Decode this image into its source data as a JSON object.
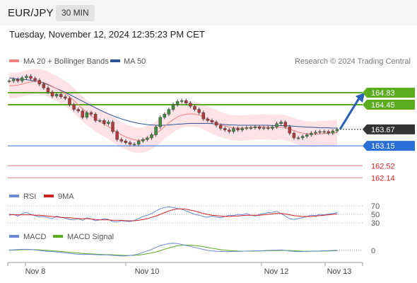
{
  "header": {
    "symbol": "EUR/JPY",
    "interval": "30 MIN",
    "datetime": "Tuesday, November 12, 2024 12:35:23 PM CET"
  },
  "legend": {
    "ma20": {
      "label": "MA 20 + Bollinger Bands",
      "color": "#f08080"
    },
    "ma50": {
      "label": "MA 50",
      "color": "#2a5599"
    },
    "credit": "Research © 2024 Trading Central"
  },
  "chart_data": [
    {
      "type": "line",
      "title": "EUR/JPY 30 MIN price",
      "ylim": [
        161.9,
        165.5
      ],
      "x_ticks": [
        "Nov 8",
        "Nov 10",
        "Nov 12",
        "Nov 13"
      ],
      "levels": [
        {
          "value": 164.83,
          "label": "164.83",
          "color": "#5aab1e",
          "kind": "resistance"
        },
        {
          "value": 164.45,
          "label": "164.45",
          "color": "#5aab1e",
          "kind": "resistance"
        },
        {
          "value": 163.67,
          "label": "163.67",
          "color": "#333333",
          "kind": "last"
        },
        {
          "value": 163.15,
          "label": "163.15",
          "color": "#2a6fd6",
          "kind": "pivot"
        },
        {
          "value": 162.52,
          "label": "162.52",
          "color": "#cc2222",
          "kind": "support"
        },
        {
          "value": 162.14,
          "label": "162.14",
          "color": "#cc2222",
          "kind": "support"
        }
      ],
      "series": [
        {
          "name": "Price",
          "values": [
            165.2,
            165.25,
            165.2,
            165.3,
            165.35,
            165.28,
            165.22,
            165.1,
            164.98,
            164.85,
            164.72,
            164.78,
            164.7,
            164.65,
            164.45,
            164.3,
            164.25,
            164.05,
            164.2,
            164.15,
            163.95,
            163.95,
            163.85,
            163.9,
            163.6,
            163.35,
            163.3,
            163.25,
            163.2,
            163.2,
            163.3,
            163.35,
            163.4,
            163.5,
            163.75,
            164.05,
            164.15,
            164.3,
            164.45,
            164.55,
            164.58,
            164.5,
            164.4,
            164.3,
            164.2,
            164.0,
            163.95,
            163.9,
            163.8,
            163.7,
            163.65,
            163.6,
            163.7,
            163.65,
            163.7,
            163.72,
            163.72,
            163.75,
            163.7,
            163.72,
            163.7,
            163.75,
            163.85,
            163.9,
            163.75,
            163.55,
            163.4,
            163.4,
            163.45,
            163.5,
            163.55,
            163.58,
            163.6,
            163.6,
            163.55,
            163.62,
            163.67
          ]
        },
        {
          "name": "MA 20",
          "values": [
            165.05,
            165.05,
            165.07,
            165.1,
            165.14,
            165.17,
            165.19,
            165.18,
            165.15,
            165.1,
            165.03,
            164.96,
            164.88,
            164.8,
            164.7,
            164.58,
            164.45,
            164.32,
            164.2,
            164.1,
            164.0,
            163.92,
            163.84,
            163.76,
            163.67,
            163.58,
            163.5,
            163.43,
            163.38,
            163.34,
            163.32,
            163.34,
            163.38,
            163.44,
            163.53,
            163.64,
            163.76,
            163.88,
            163.98,
            164.06,
            164.12,
            164.15,
            164.16,
            164.15,
            164.12,
            164.07,
            164.0,
            163.94,
            163.88,
            163.82,
            163.78,
            163.74,
            163.72,
            163.71,
            163.71,
            163.72,
            163.73,
            163.74,
            163.75,
            163.75,
            163.74,
            163.73,
            163.73,
            163.74,
            163.72,
            163.68,
            163.63,
            163.58,
            163.55,
            163.53,
            163.52,
            163.52,
            163.53,
            163.54,
            163.55,
            163.56,
            163.57
          ]
        },
        {
          "name": "MA 50",
          "values": [
            165.3,
            165.28,
            165.26,
            165.25,
            165.24,
            165.22,
            165.2,
            165.17,
            165.13,
            165.08,
            165.02,
            164.96,
            164.9,
            164.84,
            164.77,
            164.7,
            164.63,
            164.56,
            164.49,
            164.42,
            164.35,
            164.28,
            164.22,
            164.16,
            164.1,
            164.05,
            164.0,
            163.96,
            163.92,
            163.89,
            163.86,
            163.84,
            163.82,
            163.81,
            163.8,
            163.8,
            163.8,
            163.81,
            163.82,
            163.83,
            163.84,
            163.85,
            163.86,
            163.86,
            163.86,
            163.86,
            163.86,
            163.85,
            163.84,
            163.83,
            163.82,
            163.81,
            163.81,
            163.8,
            163.8,
            163.8,
            163.8,
            163.8,
            163.8,
            163.8,
            163.8,
            163.79,
            163.79,
            163.79,
            163.79,
            163.78,
            163.77,
            163.76,
            163.75,
            163.74,
            163.74,
            163.73,
            163.72,
            163.72,
            163.72,
            163.71,
            163.71
          ]
        }
      ],
      "bollinger_width": 0.4
    },
    {
      "type": "line",
      "title": "RSI",
      "ylim": [
        25,
        75
      ],
      "y_ticks": [
        70,
        50,
        30
      ],
      "legend": [
        {
          "name": "RSI",
          "color": "#6a88d6"
        },
        {
          "name": "9MA",
          "color": "#cc2222"
        }
      ],
      "series": [
        {
          "name": "RSI",
          "values": [
            48,
            50,
            46,
            52,
            55,
            50,
            47,
            44,
            45,
            42,
            40,
            46,
            43,
            41,
            38,
            37,
            40,
            36,
            42,
            39,
            35,
            37,
            40,
            38,
            33,
            32,
            35,
            34,
            33,
            36,
            40,
            45,
            48,
            52,
            58,
            63,
            66,
            68,
            66,
            64,
            62,
            58,
            54,
            50,
            48,
            45,
            43,
            46,
            44,
            42,
            45,
            48,
            47,
            50,
            49,
            52,
            48,
            46,
            50,
            52,
            54,
            55,
            57,
            52,
            46,
            40,
            38,
            40,
            42,
            45,
            48,
            47,
            50,
            49,
            51,
            52,
            54
          ]
        },
        {
          "name": "9MA",
          "values": [
            50,
            49,
            49,
            49,
            49,
            49,
            48,
            48,
            47,
            46,
            45,
            44,
            43,
            42,
            42,
            41,
            40,
            40,
            40,
            39,
            38,
            37,
            37,
            37,
            36,
            36,
            36,
            35,
            35,
            35,
            36,
            38,
            40,
            43,
            46,
            50,
            54,
            58,
            61,
            63,
            63,
            62,
            60,
            58,
            55,
            52,
            50,
            48,
            47,
            46,
            45,
            45,
            46,
            46,
            47,
            48,
            48,
            48,
            48,
            49,
            50,
            51,
            52,
            52,
            51,
            49,
            47,
            46,
            45,
            45,
            45,
            46,
            47,
            48,
            49,
            50,
            51
          ]
        }
      ]
    },
    {
      "type": "line",
      "title": "MACD",
      "ylim": [
        -1,
        1
      ],
      "y_ticks": [
        0
      ],
      "legend": [
        {
          "name": "MACD",
          "color": "#6a88d6"
        },
        {
          "name": "MACD Signal",
          "color": "#5aab1e"
        }
      ],
      "series": [
        {
          "name": "MACD",
          "values": [
            0.05,
            0.05,
            0.1,
            0.12,
            0.12,
            0.1,
            0.05,
            0,
            -0.05,
            -0.1,
            -0.12,
            -0.15,
            -0.2,
            -0.25,
            -0.3,
            -0.35,
            -0.38,
            -0.4,
            -0.4,
            -0.4,
            -0.42,
            -0.45,
            -0.45,
            -0.45,
            -0.5,
            -0.52,
            -0.55,
            -0.55,
            -0.5,
            -0.45,
            -0.35,
            -0.2,
            -0.05,
            0.1,
            0.3,
            0.5,
            0.6,
            0.7,
            0.72,
            0.7,
            0.6,
            0.5,
            0.4,
            0.3,
            0.2,
            0.1,
            0,
            -0.05,
            -0.08,
            -0.1,
            -0.12,
            -0.12,
            -0.1,
            -0.1,
            -0.08,
            -0.06,
            -0.05,
            -0.04,
            -0.03,
            -0.02,
            0,
            0.02,
            0.04,
            0.05,
            0.02,
            -0.05,
            -0.1,
            -0.12,
            -0.12,
            -0.1,
            -0.08,
            -0.06,
            -0.05,
            -0.03,
            -0.02,
            0,
            0.01
          ]
        },
        {
          "name": "MACD Signal",
          "values": [
            0.02,
            0.03,
            0.05,
            0.07,
            0.08,
            0.09,
            0.08,
            0.06,
            0.03,
            0,
            -0.03,
            -0.06,
            -0.1,
            -0.14,
            -0.18,
            -0.22,
            -0.26,
            -0.3,
            -0.33,
            -0.35,
            -0.37,
            -0.39,
            -0.41,
            -0.42,
            -0.44,
            -0.46,
            -0.48,
            -0.5,
            -0.5,
            -0.49,
            -0.46,
            -0.4,
            -0.33,
            -0.25,
            -0.15,
            -0.02,
            0.12,
            0.25,
            0.37,
            0.47,
            0.52,
            0.55,
            0.54,
            0.5,
            0.45,
            0.38,
            0.3,
            0.22,
            0.15,
            0.08,
            0.03,
            -0.01,
            -0.04,
            -0.06,
            -0.07,
            -0.07,
            -0.07,
            -0.06,
            -0.05,
            -0.04,
            -0.03,
            -0.02,
            -0.01,
            0,
            0.01,
            -0.01,
            -0.03,
            -0.05,
            -0.07,
            -0.08,
            -0.08,
            -0.08,
            -0.07,
            -0.06,
            -0.05,
            -0.04,
            -0.03
          ]
        }
      ]
    }
  ]
}
